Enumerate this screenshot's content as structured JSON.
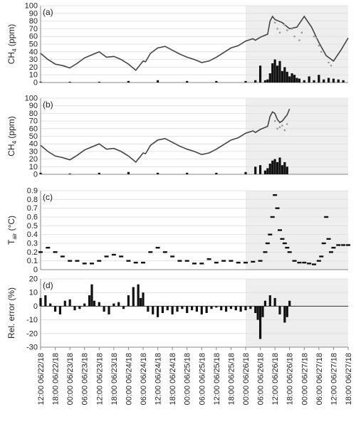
{
  "x_tick_labels": [
    "12:00 06/22/18",
    "18:00 06/22/18",
    "00:00 06/23/18",
    "06:00 06/23/18",
    "12:00 06/23/18",
    "18:00 06/23/18",
    "00:00 06/24/18",
    "06:00 06/24/18",
    "12:00 06/24/18",
    "18:00 06/24/18",
    "00:00 06/25/18",
    "06:00 06/25/18",
    "12:00 06/25/18",
    "18:00 06/25/18",
    "00:00 06/26/18",
    "06:00 06/26/18",
    "12:00 06/26/18",
    "18:00 06/26/18",
    "00:00 06/27/18",
    "06:00 06/27/18",
    "12:00 06/27/18",
    "18:00 06/27/18"
  ],
  "shaded_region": {
    "x_start": "00:00 06/26/18",
    "x_end": "18:00 06/27/18",
    "color": "#eeeeee"
  },
  "colors": {
    "series_line": "#444444",
    "scatter_points": "#999999",
    "bars": "#111111",
    "grid": "#dddddd"
  },
  "chart_data": [
    {
      "type": "line",
      "panel_label": "(a)",
      "ylabel": {
        "base": "CH",
        "sub": "4",
        "rest": " (ppm)"
      },
      "ylim": [
        0,
        100
      ],
      "yticks": [
        "0",
        "10",
        "20",
        "30",
        "40",
        "50",
        "60",
        "70",
        "80",
        "90",
        "100"
      ],
      "x_unit": "hours since 12:00 06/22/18",
      "series": [
        {
          "kind": "line",
          "x": [
            0,
            3,
            6,
            9,
            12,
            15,
            18,
            21,
            24,
            27,
            30,
            33,
            36,
            39,
            42,
            43,
            45,
            48,
            51,
            54,
            57,
            60,
            63,
            66,
            69,
            72,
            75,
            78,
            81,
            84,
            87,
            88,
            90,
            93,
            94,
            95,
            96,
            99,
            102,
            105,
            108,
            111,
            114,
            117,
            120,
            123,
            126
          ],
          "values": [
            38,
            30,
            24,
            22,
            19,
            25,
            32,
            36,
            40,
            33,
            34,
            30,
            24,
            16,
            28,
            27,
            38,
            45,
            47,
            42,
            37,
            33,
            30,
            26,
            28,
            33,
            39,
            45,
            48,
            54,
            57,
            55,
            59,
            63,
            80,
            86,
            82,
            78,
            70,
            72,
            86,
            72,
            52,
            35,
            28,
            42,
            58
          ]
        },
        {
          "kind": "scatter",
          "x": [
            96,
            97,
            98,
            100,
            101,
            103,
            104,
            106,
            107,
            112,
            113,
            114,
            115,
            118,
            119
          ],
          "values": [
            78,
            70,
            65,
            75,
            68,
            70,
            60,
            55,
            65,
            60,
            58,
            48,
            40,
            26,
            22
          ]
        },
        {
          "kind": "bar",
          "x": [
            0,
            12,
            24,
            36,
            48,
            60,
            72,
            84,
            88,
            90,
            92,
            93,
            94,
            95,
            96,
            97,
            98,
            99,
            100,
            101,
            102,
            103,
            104,
            105,
            106,
            108,
            110,
            112,
            114,
            116,
            118,
            120,
            122,
            124
          ],
          "values": [
            1,
            1,
            1,
            2,
            3,
            2,
            2,
            2,
            3,
            22,
            3,
            4,
            12,
            25,
            30,
            22,
            28,
            15,
            20,
            14,
            8,
            12,
            10,
            6,
            5,
            3,
            8,
            3,
            10,
            4,
            6,
            5,
            4,
            3
          ]
        }
      ]
    },
    {
      "type": "line",
      "panel_label": "(b)",
      "ylabel": {
        "base": "CH",
        "sub": "4",
        "rest": " (ppm)"
      },
      "ylim": [
        0,
        100
      ],
      "yticks": [
        "0",
        "10",
        "20",
        "30",
        "40",
        "50",
        "60",
        "70",
        "80",
        "90",
        "100"
      ],
      "x_unit": "hours since 12:00 06/22/18",
      "series": [
        {
          "kind": "line",
          "x": [
            0,
            3,
            6,
            9,
            12,
            15,
            18,
            21,
            24,
            27,
            30,
            33,
            36,
            39,
            42,
            43,
            45,
            48,
            51,
            54,
            57,
            60,
            63,
            66,
            69,
            72,
            75,
            78,
            81,
            84,
            87,
            88,
            90,
            93,
            94,
            95,
            96,
            97,
            98,
            99,
            100,
            101,
            102
          ],
          "values": [
            38,
            30,
            24,
            22,
            19,
            25,
            32,
            36,
            40,
            33,
            34,
            30,
            24,
            16,
            28,
            27,
            38,
            45,
            47,
            42,
            37,
            33,
            30,
            26,
            28,
            33,
            39,
            45,
            48,
            54,
            57,
            55,
            59,
            63,
            76,
            82,
            80,
            72,
            68,
            70,
            74,
            78,
            86
          ]
        },
        {
          "kind": "scatter",
          "x": [
            96,
            97,
            98,
            99,
            100,
            101
          ],
          "values": [
            70,
            60,
            62,
            64,
            58,
            66
          ]
        },
        {
          "kind": "bar",
          "x": [
            0,
            12,
            24,
            36,
            48,
            60,
            72,
            84,
            88,
            90,
            92,
            93,
            94,
            95,
            96,
            97,
            98,
            99,
            100,
            101
          ],
          "values": [
            2,
            1,
            2,
            3,
            2,
            2,
            2,
            3,
            10,
            12,
            5,
            8,
            14,
            18,
            20,
            16,
            22,
            12,
            16,
            10
          ]
        }
      ]
    },
    {
      "type": "scatter",
      "panel_label": "(c)",
      "ylabel": {
        "base": "T",
        "sub": "air",
        "rest": " (°C)"
      },
      "ylim": [
        0,
        0.9
      ],
      "yticks": [
        "0",
        "0.1",
        "0.2",
        "0.3",
        "0.4",
        "0.5",
        "0.6",
        "0.7",
        "0.8",
        "0.9"
      ],
      "x_unit": "hours since 12:00 06/22/18",
      "series": [
        {
          "kind": "scatter",
          "x": [
            0,
            3,
            6,
            9,
            12,
            15,
            18,
            21,
            24,
            27,
            30,
            33,
            36,
            39,
            42,
            45,
            48,
            51,
            54,
            57,
            60,
            63,
            66,
            69,
            72,
            75,
            78,
            81,
            84,
            87,
            90,
            92,
            93,
            94,
            95,
            96,
            97,
            98,
            99,
            100,
            101,
            102,
            104,
            106,
            108,
            110,
            112,
            114,
            115,
            116,
            117,
            118,
            119,
            120,
            122,
            124,
            126
          ],
          "values": [
            0.2,
            0.25,
            0.2,
            0.15,
            0.1,
            0.1,
            0.07,
            0.07,
            0.1,
            0.15,
            0.17,
            0.15,
            0.1,
            0.08,
            0.08,
            0.2,
            0.25,
            0.2,
            0.15,
            0.1,
            0.1,
            0.07,
            0.07,
            0.12,
            0.08,
            0.1,
            0.1,
            0.08,
            0.08,
            0.09,
            0.1,
            0.2,
            0.3,
            0.4,
            0.6,
            0.85,
            0.7,
            0.45,
            0.35,
            0.3,
            0.25,
            0.2,
            0.1,
            0.08,
            0.08,
            0.07,
            0.06,
            0.1,
            0.15,
            0.3,
            0.6,
            0.35,
            0.2,
            0.25,
            0.28,
            0.28,
            0.28
          ]
        }
      ]
    },
    {
      "type": "bar",
      "panel_label": "(d)",
      "ylabel": {
        "base": "Rel. error (%)",
        "sub": "",
        "rest": ""
      },
      "ylim": [
        -30,
        20
      ],
      "yticks": [
        "-30",
        "-20",
        "-10",
        "0",
        "10",
        "20"
      ],
      "x_unit": "hours since 12:00 06/22/18",
      "series": [
        {
          "kind": "bar",
          "x": [
            0,
            2,
            4,
            6,
            8,
            10,
            12,
            14,
            16,
            18,
            20,
            21,
            22,
            24,
            26,
            28,
            30,
            32,
            34,
            36,
            38,
            40,
            41,
            42,
            44,
            46,
            48,
            50,
            52,
            54,
            56,
            58,
            60,
            62,
            64,
            66,
            68,
            70,
            72,
            74,
            76,
            78,
            80,
            82,
            84,
            86,
            88,
            89,
            90,
            91,
            92,
            94,
            96,
            98,
            100,
            101,
            102
          ],
          "values": [
            6,
            8,
            2,
            -4,
            -6,
            4,
            5,
            -3,
            -2,
            2,
            8,
            16,
            4,
            3,
            -4,
            -6,
            2,
            3,
            -2,
            8,
            14,
            16,
            6,
            10,
            -4,
            -6,
            -8,
            -5,
            -3,
            -6,
            -4,
            -2,
            -5,
            -3,
            -4,
            -6,
            -5,
            -2,
            -1,
            -3,
            -4,
            -2,
            -3,
            -4,
            -3,
            -2,
            -5,
            -10,
            -24,
            -8,
            4,
            8,
            6,
            -6,
            -12,
            -8,
            4
          ]
        }
      ]
    }
  ]
}
